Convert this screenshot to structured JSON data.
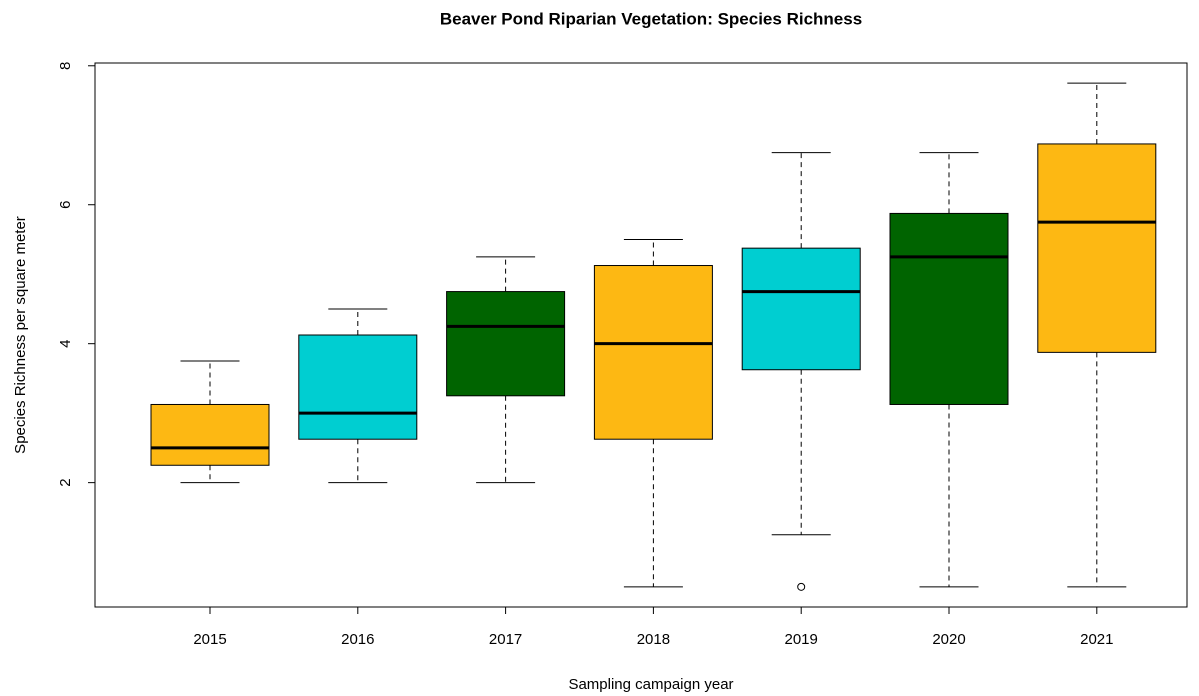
{
  "chart_data": {
    "type": "box",
    "title": "Beaver Pond Riparian Vegetation: Species Richness",
    "x_label": "Sampling campaign year",
    "y_label": "Species Richness per square meter",
    "categories": [
      "2015",
      "2016",
      "2017",
      "2018",
      "2019",
      "2020",
      "2021"
    ],
    "colors": [
      "#fdb813",
      "#00ced1",
      "#006400",
      "#fdb813",
      "#00ced1",
      "#006400",
      "#fdb813"
    ],
    "boxes": [
      {
        "min": 2,
        "q1": 2.25,
        "median": 2.5,
        "q3": 3.125,
        "max": 3.75,
        "outliers": []
      },
      {
        "min": 2,
        "q1": 2.625,
        "median": 3,
        "q3": 4.125,
        "max": 4.5,
        "outliers": []
      },
      {
        "min": 2,
        "q1": 3.25,
        "median": 4.25,
        "q3": 4.75,
        "max": 5.25,
        "outliers": []
      },
      {
        "min": 0.5,
        "q1": 2.625,
        "median": 4,
        "q3": 5.125,
        "max": 5.5,
        "outliers": []
      },
      {
        "min": 1.25,
        "q1": 3.625,
        "median": 4.75,
        "q3": 5.375,
        "max": 6.75,
        "outliers": [
          0.5
        ]
      },
      {
        "min": 0.5,
        "q1": 3.125,
        "median": 5.25,
        "q3": 5.875,
        "max": 6.75,
        "outliers": []
      },
      {
        "min": 0.5,
        "q1": 3.875,
        "median": 5.75,
        "q3": 6.875,
        "max": 7.75,
        "outliers": []
      }
    ],
    "ylim": [
      0.21,
      8.04
    ],
    "yticks": [
      2,
      4,
      6,
      8
    ]
  }
}
